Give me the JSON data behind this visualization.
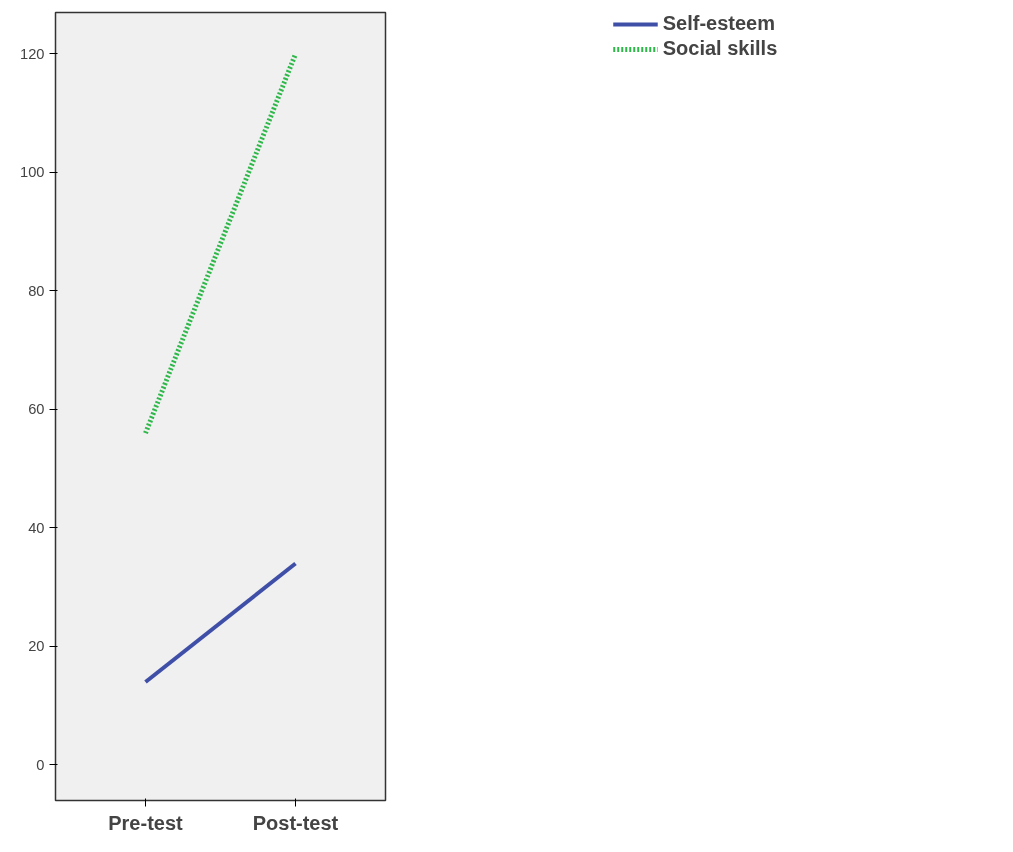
{
  "chart_data": {
    "type": "line",
    "categories": [
      "Pre-test",
      "Post-test"
    ],
    "series": [
      {
        "name": "Self-esteem",
        "color": "#3f4fa8",
        "values": [
          14,
          34
        ],
        "line_style": "solid"
      },
      {
        "name": "Social skills",
        "color": "#2eb84a",
        "values": [
          56,
          120
        ],
        "line_style": "dotted"
      }
    ],
    "ylim": [
      -6,
      127
    ],
    "yticks": [
      0,
      20,
      40,
      60,
      80,
      100,
      120
    ],
    "grid": false,
    "legend": "top right",
    "marker": "none"
  }
}
